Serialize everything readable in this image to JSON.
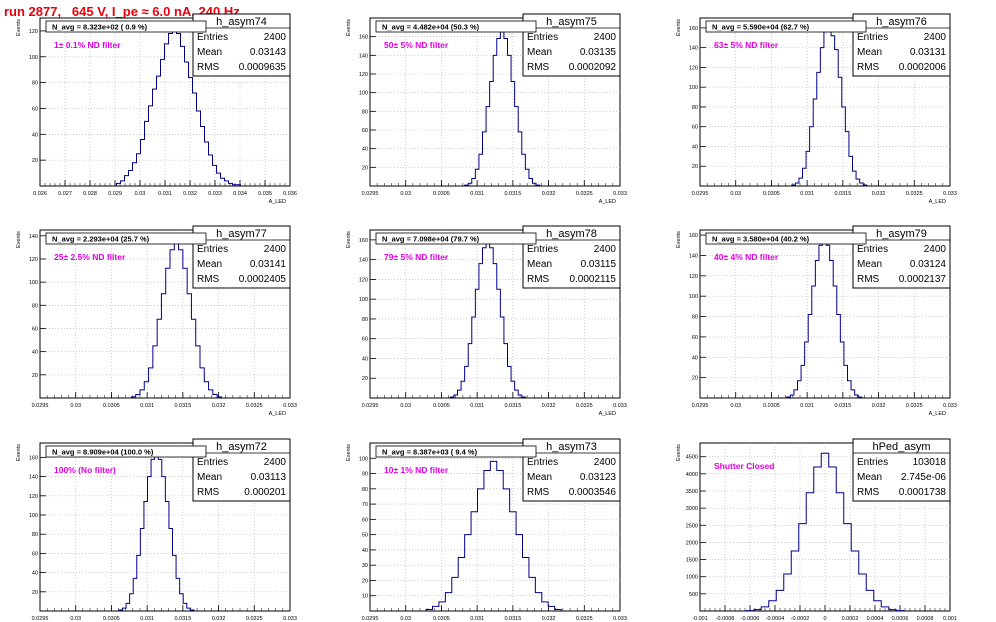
{
  "run_title": "run 2877,   645 V, I_pe ≈ 6.0 nA, 240 Hz",
  "colors": {
    "title": "#e8000b",
    "filter_label": "#e000e0",
    "histogram": "#00008b",
    "grid": "#b0b0b0",
    "frame": "#000000"
  },
  "chart_data": [
    {
      "type": "histogram",
      "name": "h_asym74",
      "stats": {
        "Entries": "2400",
        "Mean": "0.03143",
        "RMS": "0.0009635"
      },
      "navg": "N_avg = 8.323e+02 ( 0.9 %)",
      "filter": "1± 0.1% ND filter",
      "xlim": [
        0.026,
        0.036
      ],
      "ylim": [
        0,
        130
      ],
      "xticks": [
        "0.026",
        "0.027",
        "0.028",
        "0.029",
        "0.03",
        "0.031",
        "0.032",
        "0.033",
        "0.034",
        "0.035",
        "0.036"
      ],
      "yticks": [
        "20",
        "40",
        "60",
        "80",
        "100",
        "120"
      ],
      "ylabel": "Events",
      "xlabel": "A_LED",
      "x": [
        0.02914,
        0.0293,
        0.02946,
        0.02962,
        0.02978,
        0.02994,
        0.0301,
        0.03026,
        0.03042,
        0.03058,
        0.03074,
        0.0309,
        0.03106,
        0.03122,
        0.03138,
        0.03154,
        0.0317,
        0.03186,
        0.03202,
        0.03218,
        0.03234,
        0.0325,
        0.03266,
        0.03282,
        0.03298,
        0.03314,
        0.0333,
        0.03346,
        0.03362,
        0.03378,
        0.03394
      ],
      "values": [
        2,
        4,
        8,
        12,
        18,
        25,
        36,
        50,
        62,
        75,
        85,
        98,
        110,
        118,
        122,
        118,
        108,
        96,
        84,
        72,
        58,
        46,
        34,
        24,
        16,
        10,
        6,
        4,
        2,
        1,
        1
      ]
    },
    {
      "type": "histogram",
      "name": "h_asym75",
      "stats": {
        "Entries": "2400",
        "Mean": "0.03135",
        "RMS": "0.0002092"
      },
      "navg": "N_avg = 4.482e+04 (50.3 %)",
      "filter": "50± 5% ND filter",
      "xlim": [
        0.0295,
        0.033
      ],
      "ylim": [
        0,
        180
      ],
      "xticks": [
        "0.0295",
        "0.03",
        "0.0305",
        "0.031",
        "0.0315",
        "0.032",
        "0.0325",
        "0.033"
      ],
      "yticks": [
        "20",
        "40",
        "60",
        "80",
        "100",
        "120",
        "140",
        "160",
        "180"
      ],
      "ylabel": "Events",
      "xlabel": "A_LED",
      "x": [
        0.03085,
        0.0309,
        0.03095,
        0.031,
        0.03105,
        0.0311,
        0.03115,
        0.0312,
        0.03125,
        0.0313,
        0.03135,
        0.0314,
        0.03145,
        0.0315,
        0.03155,
        0.0316,
        0.03165,
        0.0317,
        0.03175,
        0.0318,
        0.03185
      ],
      "values": [
        1,
        3,
        8,
        18,
        34,
        58,
        85,
        112,
        140,
        158,
        165,
        158,
        140,
        112,
        85,
        58,
        34,
        18,
        8,
        3,
        1
      ]
    },
    {
      "type": "histogram",
      "name": "h_asym76",
      "stats": {
        "Entries": "2400",
        "Mean": "0.03131",
        "RMS": "0.0002006"
      },
      "navg": "N_avg = 5.590e+04 (62.7 %)",
      "filter": "63± 5% ND filter",
      "xlim": [
        0.0295,
        0.033
      ],
      "ylim": [
        0,
        170
      ],
      "xticks": [
        "0.0295",
        "0.03",
        "0.0305",
        "0.031",
        "0.0315",
        "0.032",
        "0.0325",
        "0.033"
      ],
      "yticks": [
        "20",
        "40",
        "60",
        "80",
        "100",
        "120",
        "140",
        "160"
      ],
      "ylabel": "Events",
      "xlabel": "A_LED",
      "x": [
        0.03081,
        0.03086,
        0.03091,
        0.03096,
        0.03101,
        0.03106,
        0.03111,
        0.03116,
        0.03121,
        0.03126,
        0.03131,
        0.03136,
        0.03141,
        0.03146,
        0.03151,
        0.03156,
        0.03161,
        0.03166,
        0.03171,
        0.03176,
        0.03181
      ],
      "values": [
        1,
        3,
        8,
        18,
        35,
        60,
        88,
        115,
        140,
        156,
        160,
        152,
        138,
        110,
        80,
        55,
        30,
        15,
        7,
        3,
        1
      ]
    },
    {
      "type": "histogram",
      "name": "h_asym77",
      "stats": {
        "Entries": "2400",
        "Mean": "0.03141",
        "RMS": "0.0002405"
      },
      "navg": "N_avg = 2.293e+04 (25.7 %)",
      "filter": "25± 2.5% ND filter",
      "xlim": [
        0.0295,
        0.033
      ],
      "ylim": [
        0,
        145
      ],
      "xticks": [
        "0.0295",
        "0.03",
        "0.0305",
        "0.031",
        "0.0315",
        "0.032",
        "0.0325",
        "0.033"
      ],
      "yticks": [
        "20",
        "40",
        "60",
        "80",
        "100",
        "120",
        "140"
      ],
      "ylabel": "Events",
      "xlabel": "A_LED",
      "x": [
        0.03081,
        0.03087,
        0.03093,
        0.03099,
        0.03105,
        0.03111,
        0.03117,
        0.03123,
        0.03129,
        0.03135,
        0.03141,
        0.03147,
        0.03153,
        0.03159,
        0.03165,
        0.03171,
        0.03177,
        0.03183,
        0.03189,
        0.03195,
        0.03201
      ],
      "values": [
        1,
        3,
        7,
        14,
        26,
        45,
        68,
        90,
        112,
        128,
        134,
        128,
        112,
        90,
        68,
        45,
        26,
        14,
        7,
        3,
        1
      ]
    },
    {
      "type": "histogram",
      "name": "h_asym78",
      "stats": {
        "Entries": "2400",
        "Mean": "0.03115",
        "RMS": "0.0002115"
      },
      "navg": "N_avg = 7.098e+04 (79.7 %)",
      "filter": "79± 5% ND filter",
      "xlim": [
        0.0295,
        0.033
      ],
      "ylim": [
        0,
        170
      ],
      "xticks": [
        "0.0295",
        "0.03",
        "0.0305",
        "0.031",
        "0.0315",
        "0.032",
        "0.0325",
        "0.033"
      ],
      "yticks": [
        "20",
        "40",
        "60",
        "80",
        "100",
        "120",
        "140",
        "160"
      ],
      "ylabel": "Events",
      "xlabel": "A_LED",
      "x": [
        0.03065,
        0.0307,
        0.03075,
        0.0308,
        0.03085,
        0.0309,
        0.03095,
        0.031,
        0.03105,
        0.0311,
        0.03115,
        0.0312,
        0.03125,
        0.0313,
        0.03135,
        0.0314,
        0.03145,
        0.0315,
        0.03155,
        0.0316,
        0.03165
      ],
      "values": [
        1,
        3,
        8,
        17,
        32,
        55,
        82,
        110,
        136,
        152,
        158,
        152,
        136,
        110,
        82,
        55,
        32,
        17,
        8,
        3,
        1
      ]
    },
    {
      "type": "histogram",
      "name": "h_asym79",
      "stats": {
        "Entries": "2400",
        "Mean": "0.03124",
        "RMS": "0.0002137"
      },
      "navg": "N_avg = 3.580e+04 (40.2 %)",
      "filter": "40± 4% ND filter",
      "xlim": [
        0.0295,
        0.033
      ],
      "ylim": [
        0,
        165
      ],
      "xticks": [
        "0.0295",
        "0.03",
        "0.0305",
        "0.031",
        "0.0315",
        "0.032",
        "0.0325",
        "0.033"
      ],
      "yticks": [
        "20",
        "40",
        "60",
        "80",
        "100",
        "120",
        "140",
        "160"
      ],
      "ylabel": "Events",
      "xlabel": "A_LED",
      "x": [
        0.03074,
        0.03079,
        0.03084,
        0.03089,
        0.03094,
        0.03099,
        0.03104,
        0.03109,
        0.03114,
        0.03119,
        0.03124,
        0.03129,
        0.03134,
        0.03139,
        0.03144,
        0.03149,
        0.03154,
        0.03159,
        0.03164,
        0.03169,
        0.03174
      ],
      "values": [
        1,
        3,
        8,
        17,
        32,
        55,
        82,
        110,
        135,
        150,
        155,
        150,
        135,
        110,
        82,
        55,
        32,
        17,
        8,
        3,
        1
      ]
    },
    {
      "type": "histogram",
      "name": "h_asym72",
      "stats": {
        "Entries": "2400",
        "Mean": "0.03113",
        "RMS": "0.000201"
      },
      "navg": "N_avg = 8.909e+04 (100.0 %)",
      "filter": "100% (No filter)",
      "xlim": [
        0.0295,
        0.033
      ],
      "ylim": [
        0,
        175
      ],
      "xticks": [
        "0.0295",
        "0.03",
        "0.0305",
        "0.031",
        "0.0315",
        "0.032",
        "0.0325",
        "0.033"
      ],
      "yticks": [
        "20",
        "40",
        "60",
        "80",
        "100",
        "120",
        "140",
        "160"
      ],
      "ylabel": "Events",
      "xlabel": "A_LED",
      "x": [
        0.03063,
        0.03068,
        0.03073,
        0.03078,
        0.03083,
        0.03088,
        0.03093,
        0.03098,
        0.03103,
        0.03108,
        0.03113,
        0.03118,
        0.03123,
        0.03128,
        0.03133,
        0.03138,
        0.03143,
        0.03148,
        0.03153,
        0.03158,
        0.03163
      ],
      "values": [
        1,
        3,
        8,
        18,
        34,
        58,
        86,
        114,
        140,
        158,
        165,
        158,
        140,
        114,
        86,
        58,
        34,
        18,
        8,
        3,
        1
      ]
    },
    {
      "type": "histogram",
      "name": "h_asym73",
      "stats": {
        "Entries": "2400",
        "Mean": "0.03123",
        "RMS": "0.0003546"
      },
      "navg": "N_avg = 8.387e+03 ( 9.4 %)",
      "filter": "10± 1% ND filter",
      "xlim": [
        0.0295,
        0.033
      ],
      "ylim": [
        0,
        110
      ],
      "xticks": [
        "0.0295",
        "0.03",
        "0.0305",
        "0.031",
        "0.0315",
        "0.032",
        "0.0325",
        "0.033"
      ],
      "yticks": [
        "10",
        "20",
        "30",
        "40",
        "50",
        "60",
        "70",
        "80",
        "90",
        "100"
      ],
      "ylabel": "Events",
      "xlabel": "A_LED",
      "x": [
        0.03033,
        0.03042,
        0.03051,
        0.0306,
        0.03069,
        0.03078,
        0.03087,
        0.03096,
        0.03105,
        0.03114,
        0.03123,
        0.03132,
        0.03141,
        0.0315,
        0.03159,
        0.03168,
        0.03177,
        0.03186,
        0.03195,
        0.03204,
        0.03213
      ],
      "values": [
        1,
        3,
        6,
        12,
        22,
        35,
        50,
        65,
        80,
        92,
        98,
        92,
        80,
        65,
        50,
        35,
        22,
        12,
        6,
        3,
        1
      ]
    },
    {
      "type": "histogram",
      "name": "hPed_asym",
      "stats": {
        "Entries": "103018",
        "Mean": "2.745e-06",
        "RMS": "0.0001738"
      },
      "navg": "",
      "filter": "Shutter Closed",
      "xlim": [
        -0.001,
        0.001
      ],
      "ylim": [
        0,
        4900
      ],
      "xticks": [
        "-0.001",
        "-0.0008",
        "-0.0006",
        "-0.0004",
        "-0.0002",
        "0",
        "0.0002",
        "0.0004",
        "0.0006",
        "0.0008",
        "0.001"
      ],
      "yticks": [
        "500",
        "1000",
        "1500",
        "2000",
        "2500",
        "3000",
        "3500",
        "4000",
        "4500"
      ],
      "ylabel": "Events",
      "xlabel": "A_LED",
      "x": [
        -0.0006,
        -0.00054,
        -0.00048,
        -0.00042,
        -0.00036,
        -0.0003,
        -0.00024,
        -0.00018,
        -0.00012,
        -6e-05,
        0,
        6e-05,
        0.00012,
        0.00018,
        0.00024,
        0.0003,
        0.00036,
        0.00042,
        0.00048,
        0.00054,
        0.0006
      ],
      "values": [
        10,
        40,
        120,
        300,
        600,
        1080,
        1750,
        2550,
        3450,
        4200,
        4600,
        4200,
        3450,
        2550,
        1750,
        1080,
        600,
        300,
        120,
        40,
        10
      ]
    }
  ]
}
